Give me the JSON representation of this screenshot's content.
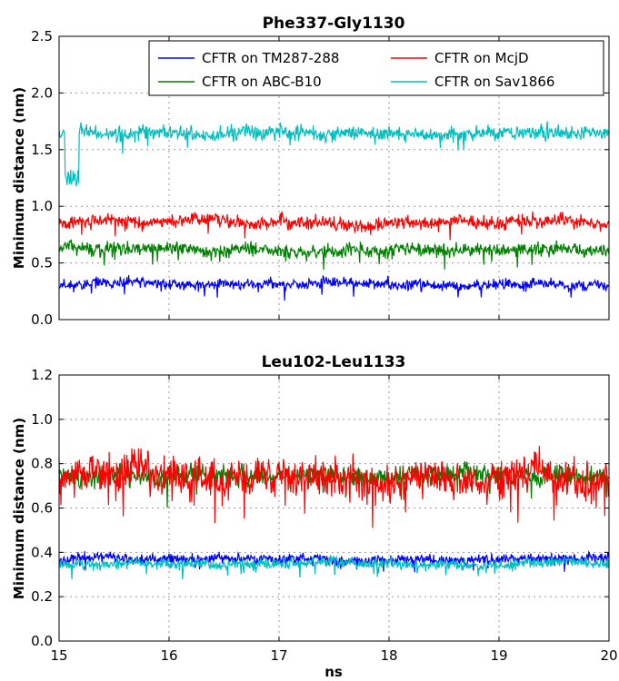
{
  "chart_data": [
    {
      "type": "line",
      "title": "Phe337-Gly1130",
      "xlabel": "",
      "ylabel": "Minimum distance (nm)",
      "xlim": [
        15,
        20
      ],
      "ylim": [
        0.0,
        2.5
      ],
      "xticks": [
        "15",
        "16",
        "17",
        "18",
        "19",
        "20"
      ],
      "yticks": [
        "0.0",
        "0.5",
        "1.0",
        "1.5",
        "2.0",
        "2.5"
      ],
      "grid": true,
      "legend": "top-right",
      "series": [
        {
          "name": "CFTR on TM287-288",
          "color": "#0000ff",
          "mean": 0.31,
          "noise": 0.035
        },
        {
          "name": "CFTR on McjD",
          "color": "#ff0000",
          "mean": 0.86,
          "noise": 0.045
        },
        {
          "name": "CFTR on ABC-B10",
          "color": "#008000",
          "mean": 0.62,
          "noise": 0.045
        },
        {
          "name": "CFTR on Sav1866",
          "color": "#00bfbf",
          "mean": 1.64,
          "noise": 0.05
        }
      ]
    },
    {
      "type": "line",
      "title": "Leu102-Leu1133",
      "xlabel": "ns",
      "ylabel": "Minimum distance (nm)",
      "xlim": [
        15,
        20
      ],
      "ylim": [
        0.0,
        1.2
      ],
      "xticks": [
        "15",
        "16",
        "17",
        "18",
        "19",
        "20"
      ],
      "yticks": [
        "0.0",
        "0.2",
        "0.4",
        "0.6",
        "0.8",
        "1.0",
        "1.2"
      ],
      "grid": true,
      "series": [
        {
          "name": "CFTR on TM287-288",
          "color": "#0000ff",
          "mean": 0.37,
          "noise": 0.018
        },
        {
          "name": "CFTR on ABC-B10",
          "color": "#008000",
          "mean": 0.75,
          "noise": 0.035
        },
        {
          "name": "CFTR on McjD",
          "color": "#ff0000",
          "mean": 0.74,
          "noise": 0.07
        },
        {
          "name": "CFTR on Sav1866",
          "color": "#00bfbf",
          "mean": 0.35,
          "noise": 0.018
        }
      ]
    }
  ]
}
